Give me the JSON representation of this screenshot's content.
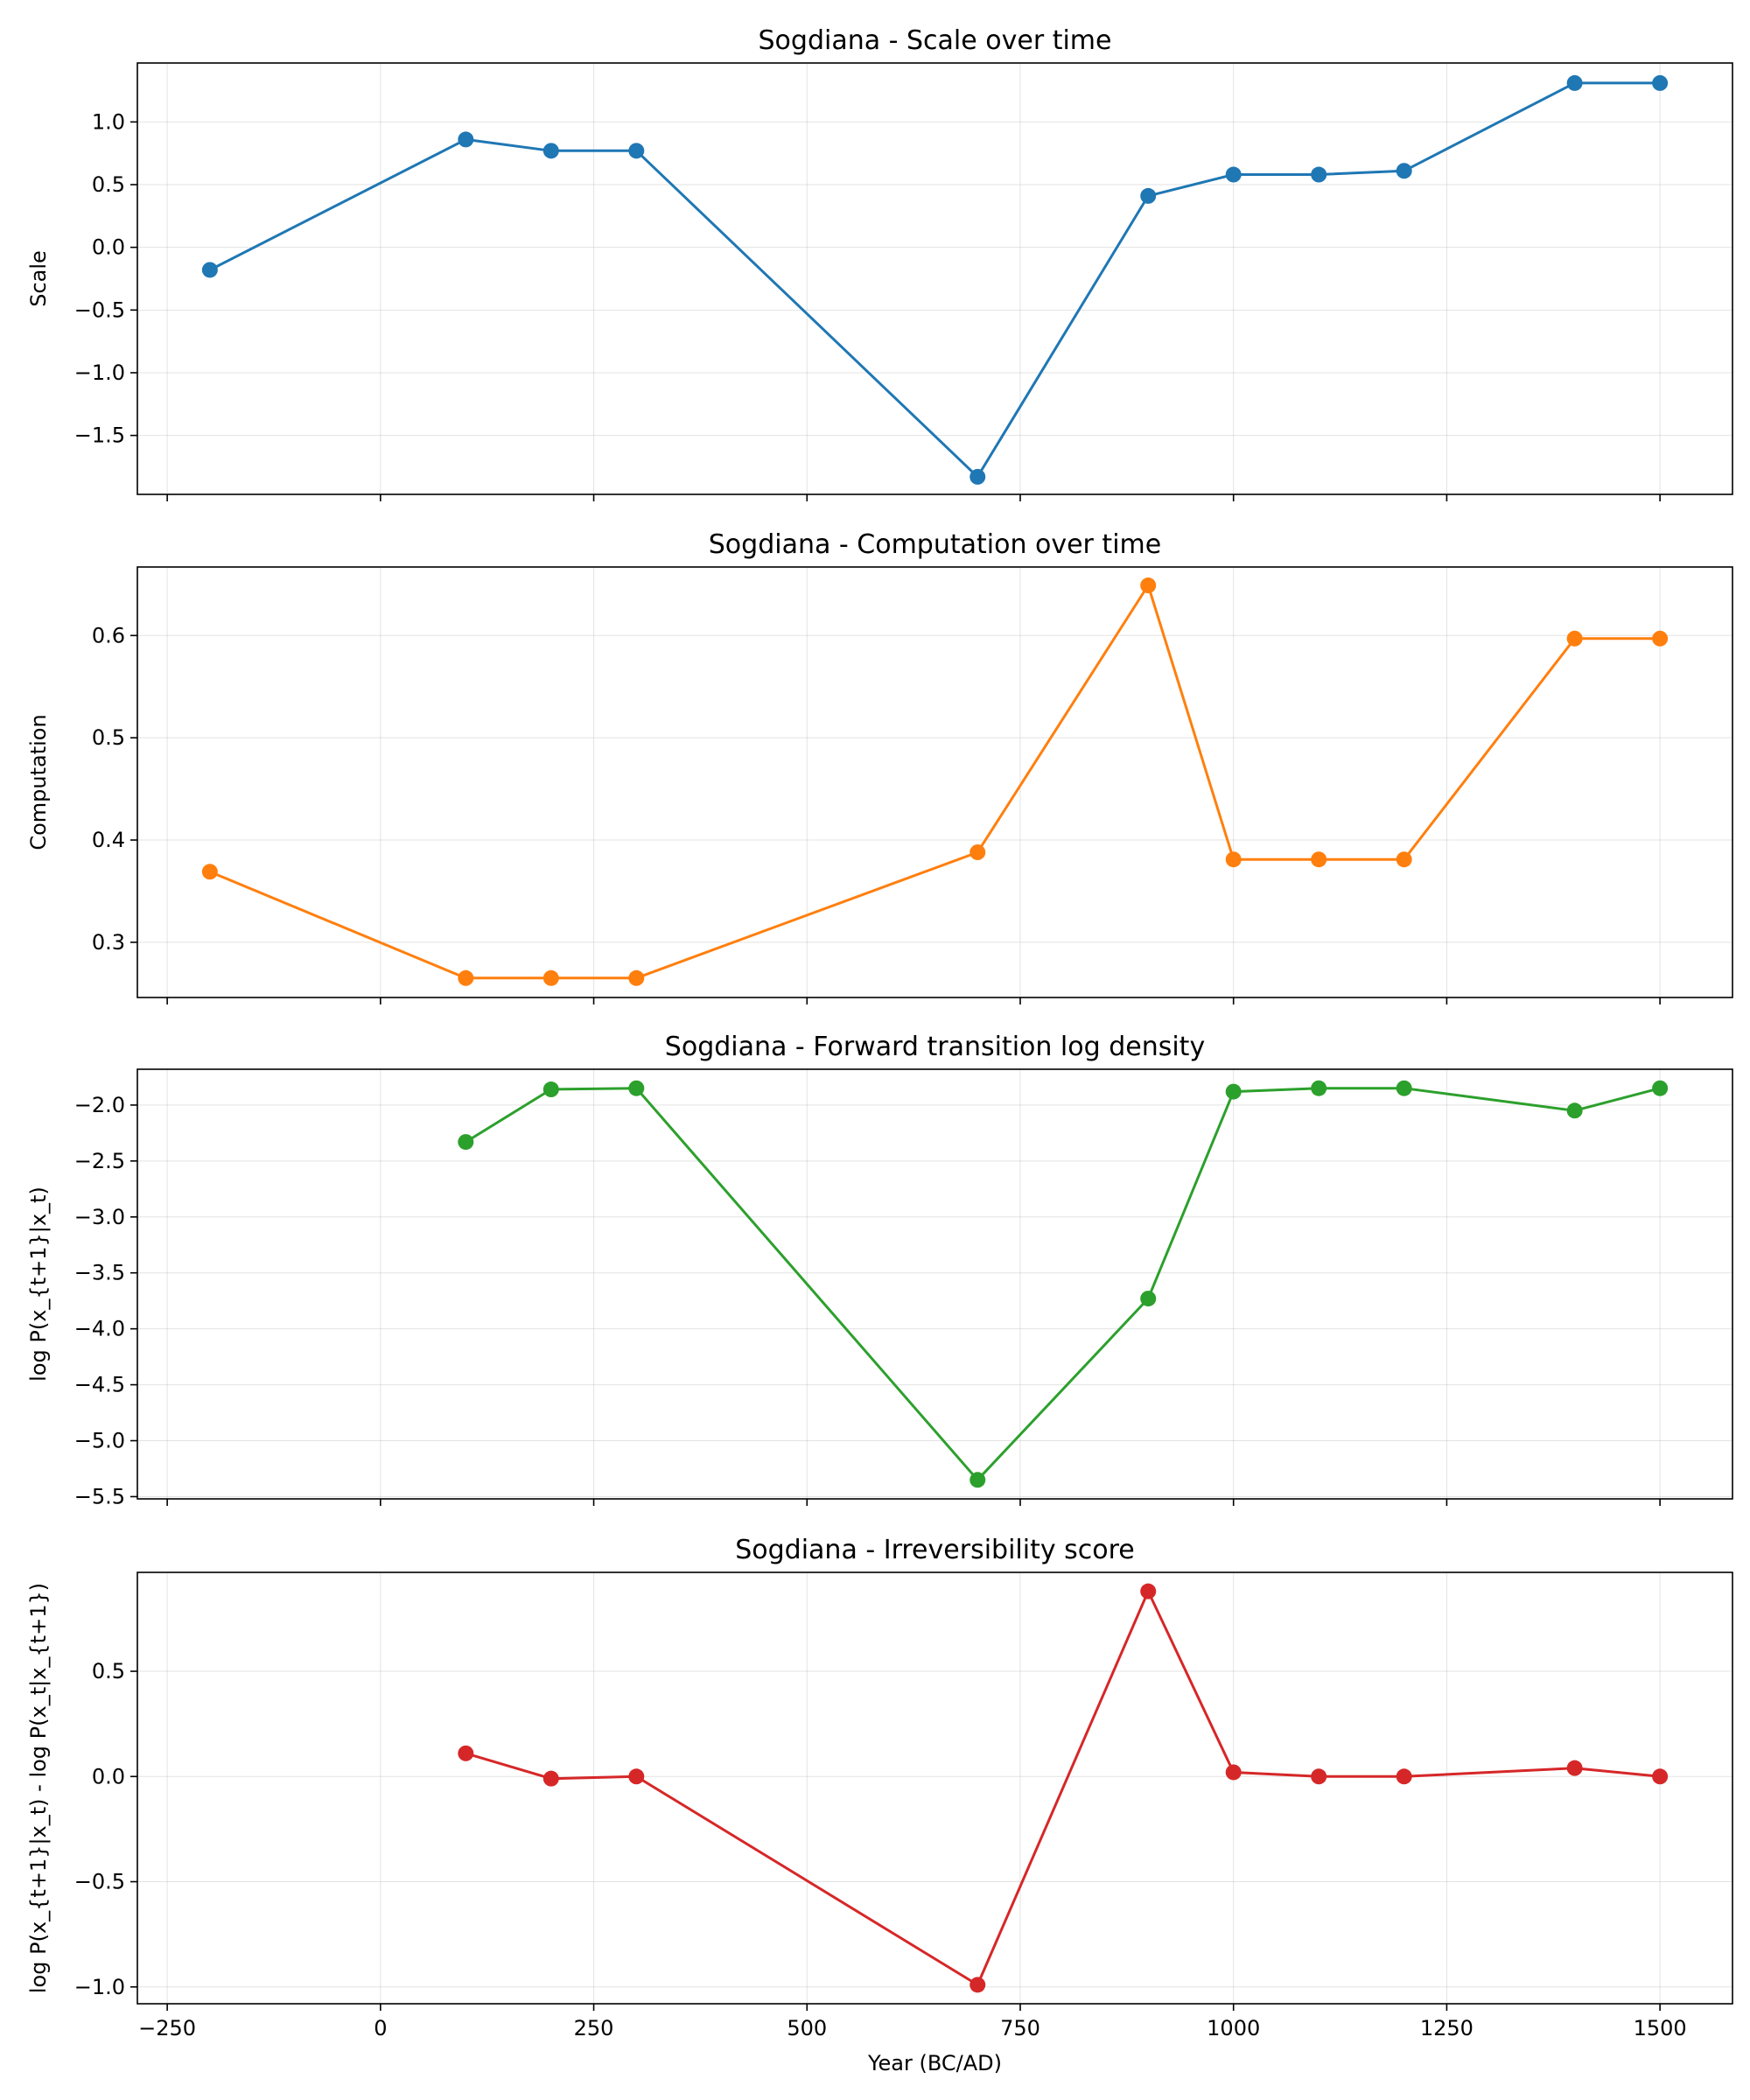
{
  "chart_data": [
    {
      "type": "line",
      "title": "Sogdiana - Scale over time",
      "xlabel": "",
      "ylabel": "Scale",
      "color": "#1f77b4",
      "x": [
        -200,
        100,
        200,
        300,
        700,
        900,
        1000,
        1100,
        1200,
        1400,
        1500
      ],
      "values": [
        -0.18,
        0.86,
        0.77,
        0.77,
        -1.83,
        0.41,
        0.58,
        0.58,
        0.61,
        1.31,
        1.31
      ],
      "xlim": [
        -285,
        1585
      ],
      "ylim": [
        -1.97,
        1.47
      ],
      "yticks": [
        1.0,
        0.5,
        0.0,
        -0.5,
        -1.0,
        -1.5
      ],
      "yticklabels": [
        "1.0",
        "0.5",
        "0.0",
        "−0.5",
        "−1.0",
        "−1.5"
      ],
      "grid": true
    },
    {
      "type": "line",
      "title": "Sogdiana - Computation over time",
      "xlabel": "",
      "ylabel": "Computation",
      "color": "#ff7f0e",
      "x": [
        -200,
        100,
        200,
        300,
        700,
        900,
        1000,
        1100,
        1200,
        1400,
        1500
      ],
      "values": [
        0.369,
        0.265,
        0.265,
        0.265,
        0.388,
        0.649,
        0.381,
        0.381,
        0.381,
        0.597,
        0.597
      ],
      "xlim": [
        -285,
        1585
      ],
      "ylim": [
        0.246,
        0.667
      ],
      "yticks": [
        0.6,
        0.5,
        0.4,
        0.3
      ],
      "yticklabels": [
        "0.6",
        "0.5",
        "0.4",
        "0.3"
      ],
      "grid": true
    },
    {
      "type": "line",
      "title": "Sogdiana - Forward transition log density",
      "xlabel": "",
      "ylabel": "log P(x_{t+1}|x_t)",
      "color": "#2ca02c",
      "x": [
        100,
        200,
        300,
        700,
        900,
        1000,
        1100,
        1200,
        1400,
        1500
      ],
      "values": [
        -2.33,
        -1.86,
        -1.85,
        -5.35,
        -3.73,
        -1.88,
        -1.85,
        -1.85,
        -2.05,
        -1.85
      ],
      "xlim": [
        -285,
        1585
      ],
      "ylim": [
        -5.52,
        -1.68
      ],
      "yticks": [
        -2.0,
        -2.5,
        -3.0,
        -3.5,
        -4.0,
        -4.5,
        -5.0,
        -5.5
      ],
      "yticklabels": [
        "−2.0",
        "−2.5",
        "−3.0",
        "−3.5",
        "−4.0",
        "−4.5",
        "−5.0",
        "−5.5"
      ],
      "grid": true
    },
    {
      "type": "line",
      "title": "Sogdiana - Irreversibility score",
      "xlabel": "Year (BC/AD)",
      "ylabel": "log P(x_{t+1}|x_t) - log P(x_t|x_{t+1})",
      "color": "#d62728",
      "x": [
        100,
        200,
        300,
        700,
        900,
        1000,
        1100,
        1200,
        1400,
        1500
      ],
      "values": [
        0.11,
        -0.01,
        0.0,
        -0.99,
        0.88,
        0.02,
        0.0,
        0.0,
        0.04,
        0.0
      ],
      "xlim": [
        -285,
        1585
      ],
      "ylim": [
        -1.08,
        0.97
      ],
      "yticks": [
        0.5,
        0.0,
        -0.5,
        -1.0
      ],
      "yticklabels": [
        "0.5",
        "0.0",
        "−0.5",
        "−1.0"
      ],
      "xticks": [
        -250,
        0,
        250,
        500,
        750,
        1000,
        1250,
        1500
      ],
      "xticklabels": [
        "−250",
        "0",
        "250",
        "500",
        "750",
        "1000",
        "1250",
        "1500"
      ],
      "grid": true
    }
  ]
}
